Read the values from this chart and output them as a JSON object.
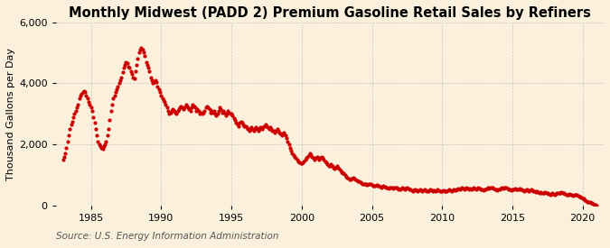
{
  "title": "Monthly Midwest (PADD 2) Premium Gasoline Retail Sales by Refiners",
  "ylabel": "Thousand Gallons per Day",
  "source": "Source: U.S. Energy Information Administration",
  "bg_color": "#faf0dc",
  "plot_bg_color": "#faf0dc",
  "dot_color": "#cc0000",
  "dot_size": 4,
  "xlim": [
    1982.5,
    2021.5
  ],
  "ylim": [
    0,
    6000
  ],
  "yticks": [
    0,
    2000,
    4000,
    6000
  ],
  "xticks": [
    1985,
    1990,
    1995,
    2000,
    2005,
    2010,
    2015,
    2020
  ],
  "grid_color": "#bbbbbb",
  "title_fontsize": 10.5,
  "axis_fontsize": 8,
  "source_fontsize": 7.5,
  "series": [
    [
      1983.0,
      1500
    ],
    [
      1983.08,
      1580
    ],
    [
      1983.17,
      1700
    ],
    [
      1983.25,
      1900
    ],
    [
      1983.33,
      2100
    ],
    [
      1983.42,
      2300
    ],
    [
      1983.5,
      2500
    ],
    [
      1983.58,
      2650
    ],
    [
      1983.67,
      2750
    ],
    [
      1983.75,
      2900
    ],
    [
      1983.83,
      3000
    ],
    [
      1983.92,
      3100
    ],
    [
      1984.0,
      3200
    ],
    [
      1984.08,
      3300
    ],
    [
      1984.17,
      3500
    ],
    [
      1984.25,
      3600
    ],
    [
      1984.33,
      3650
    ],
    [
      1984.42,
      3700
    ],
    [
      1984.5,
      3750
    ],
    [
      1984.58,
      3700
    ],
    [
      1984.67,
      3600
    ],
    [
      1984.75,
      3500
    ],
    [
      1984.83,
      3400
    ],
    [
      1984.92,
      3300
    ],
    [
      1985.0,
      3200
    ],
    [
      1985.08,
      3100
    ],
    [
      1985.17,
      2900
    ],
    [
      1985.25,
      2700
    ],
    [
      1985.33,
      2500
    ],
    [
      1985.42,
      2300
    ],
    [
      1985.5,
      2100
    ],
    [
      1985.58,
      2000
    ],
    [
      1985.67,
      1950
    ],
    [
      1985.75,
      1900
    ],
    [
      1985.83,
      1850
    ],
    [
      1985.92,
      1950
    ],
    [
      1986.0,
      2000
    ],
    [
      1986.08,
      2100
    ],
    [
      1986.17,
      2300
    ],
    [
      1986.25,
      2500
    ],
    [
      1986.33,
      2800
    ],
    [
      1986.42,
      3100
    ],
    [
      1986.5,
      3300
    ],
    [
      1986.58,
      3500
    ],
    [
      1986.67,
      3600
    ],
    [
      1986.75,
      3700
    ],
    [
      1986.83,
      3800
    ],
    [
      1986.92,
      3900
    ],
    [
      1987.0,
      4000
    ],
    [
      1987.08,
      4100
    ],
    [
      1987.17,
      4200
    ],
    [
      1987.25,
      4350
    ],
    [
      1987.33,
      4500
    ],
    [
      1987.42,
      4600
    ],
    [
      1987.5,
      4700
    ],
    [
      1987.58,
      4650
    ],
    [
      1987.67,
      4550
    ],
    [
      1987.75,
      4500
    ],
    [
      1987.83,
      4400
    ],
    [
      1987.92,
      4300
    ],
    [
      1988.0,
      4200
    ],
    [
      1988.08,
      4150
    ],
    [
      1988.17,
      4400
    ],
    [
      1988.25,
      4600
    ],
    [
      1988.33,
      4800
    ],
    [
      1988.42,
      5000
    ],
    [
      1988.5,
      5100
    ],
    [
      1988.58,
      5150
    ],
    [
      1988.67,
      5100
    ],
    [
      1988.75,
      5000
    ],
    [
      1988.83,
      4900
    ],
    [
      1988.92,
      4700
    ],
    [
      1989.0,
      4600
    ],
    [
      1989.08,
      4500
    ],
    [
      1989.17,
      4400
    ],
    [
      1989.25,
      4200
    ],
    [
      1989.33,
      4100
    ],
    [
      1989.42,
      4000
    ],
    [
      1989.5,
      4050
    ],
    [
      1989.58,
      4100
    ],
    [
      1989.67,
      4050
    ],
    [
      1989.75,
      3900
    ],
    [
      1989.83,
      3800
    ],
    [
      1989.92,
      3700
    ],
    [
      1990.0,
      3600
    ],
    [
      1990.08,
      3500
    ],
    [
      1990.17,
      3450
    ],
    [
      1990.25,
      3400
    ],
    [
      1990.33,
      3300
    ],
    [
      1990.42,
      3200
    ],
    [
      1990.5,
      3100
    ],
    [
      1990.58,
      3000
    ],
    [
      1990.67,
      3050
    ],
    [
      1990.75,
      3100
    ],
    [
      1990.83,
      3150
    ],
    [
      1990.92,
      3100
    ],
    [
      1991.0,
      3050
    ],
    [
      1991.08,
      3000
    ],
    [
      1991.17,
      3100
    ],
    [
      1991.25,
      3150
    ],
    [
      1991.33,
      3200
    ],
    [
      1991.42,
      3250
    ],
    [
      1991.5,
      3200
    ],
    [
      1991.58,
      3150
    ],
    [
      1991.67,
      3200
    ],
    [
      1991.75,
      3300
    ],
    [
      1991.83,
      3250
    ],
    [
      1991.92,
      3200
    ],
    [
      1992.0,
      3150
    ],
    [
      1992.08,
      3100
    ],
    [
      1992.17,
      3200
    ],
    [
      1992.25,
      3300
    ],
    [
      1992.33,
      3250
    ],
    [
      1992.42,
      3200
    ],
    [
      1992.5,
      3100
    ],
    [
      1992.58,
      3150
    ],
    [
      1992.67,
      3100
    ],
    [
      1992.75,
      3000
    ],
    [
      1992.83,
      3050
    ],
    [
      1992.92,
      3000
    ],
    [
      1993.0,
      3050
    ],
    [
      1993.08,
      3100
    ],
    [
      1993.17,
      3200
    ],
    [
      1993.25,
      3250
    ],
    [
      1993.33,
      3200
    ],
    [
      1993.42,
      3150
    ],
    [
      1993.5,
      3050
    ],
    [
      1993.58,
      3100
    ],
    [
      1993.67,
      3050
    ],
    [
      1993.75,
      3100
    ],
    [
      1993.83,
      3000
    ],
    [
      1993.92,
      2950
    ],
    [
      1994.0,
      3000
    ],
    [
      1994.08,
      3100
    ],
    [
      1994.17,
      3200
    ],
    [
      1994.25,
      3150
    ],
    [
      1994.33,
      3050
    ],
    [
      1994.42,
      3100
    ],
    [
      1994.5,
      3050
    ],
    [
      1994.58,
      2950
    ],
    [
      1994.67,
      3000
    ],
    [
      1994.75,
      3100
    ],
    [
      1994.83,
      3050
    ],
    [
      1994.92,
      3000
    ],
    [
      1995.0,
      3000
    ],
    [
      1995.08,
      2950
    ],
    [
      1995.17,
      2850
    ],
    [
      1995.25,
      2800
    ],
    [
      1995.33,
      2700
    ],
    [
      1995.42,
      2650
    ],
    [
      1995.5,
      2600
    ],
    [
      1995.58,
      2700
    ],
    [
      1995.67,
      2750
    ],
    [
      1995.75,
      2700
    ],
    [
      1995.83,
      2650
    ],
    [
      1995.92,
      2600
    ],
    [
      1996.0,
      2600
    ],
    [
      1996.08,
      2550
    ],
    [
      1996.17,
      2500
    ],
    [
      1996.25,
      2450
    ],
    [
      1996.33,
      2500
    ],
    [
      1996.42,
      2550
    ],
    [
      1996.5,
      2500
    ],
    [
      1996.58,
      2450
    ],
    [
      1996.67,
      2500
    ],
    [
      1996.75,
      2550
    ],
    [
      1996.83,
      2500
    ],
    [
      1996.92,
      2450
    ],
    [
      1997.0,
      2500
    ],
    [
      1997.08,
      2550
    ],
    [
      1997.17,
      2500
    ],
    [
      1997.25,
      2550
    ],
    [
      1997.33,
      2600
    ],
    [
      1997.42,
      2650
    ],
    [
      1997.5,
      2600
    ],
    [
      1997.58,
      2550
    ],
    [
      1997.67,
      2500
    ],
    [
      1997.75,
      2550
    ],
    [
      1997.83,
      2500
    ],
    [
      1997.92,
      2450
    ],
    [
      1998.0,
      2450
    ],
    [
      1998.08,
      2400
    ],
    [
      1998.17,
      2450
    ],
    [
      1998.25,
      2500
    ],
    [
      1998.33,
      2450
    ],
    [
      1998.42,
      2400
    ],
    [
      1998.5,
      2350
    ],
    [
      1998.58,
      2300
    ],
    [
      1998.67,
      2350
    ],
    [
      1998.75,
      2400
    ],
    [
      1998.83,
      2300
    ],
    [
      1998.92,
      2200
    ],
    [
      1999.0,
      2100
    ],
    [
      1999.08,
      2000
    ],
    [
      1999.17,
      1900
    ],
    [
      1999.25,
      1800
    ],
    [
      1999.33,
      1700
    ],
    [
      1999.42,
      1650
    ],
    [
      1999.5,
      1600
    ],
    [
      1999.58,
      1550
    ],
    [
      1999.67,
      1500
    ],
    [
      1999.75,
      1450
    ],
    [
      1999.83,
      1400
    ],
    [
      1999.92,
      1380
    ],
    [
      2000.0,
      1380
    ],
    [
      2000.08,
      1400
    ],
    [
      2000.17,
      1450
    ],
    [
      2000.25,
      1500
    ],
    [
      2000.33,
      1550
    ],
    [
      2000.42,
      1600
    ],
    [
      2000.5,
      1650
    ],
    [
      2000.58,
      1700
    ],
    [
      2000.67,
      1650
    ],
    [
      2000.75,
      1600
    ],
    [
      2000.83,
      1550
    ],
    [
      2000.92,
      1500
    ],
    [
      2001.0,
      1550
    ],
    [
      2001.08,
      1600
    ],
    [
      2001.17,
      1550
    ],
    [
      2001.25,
      1500
    ],
    [
      2001.33,
      1550
    ],
    [
      2001.42,
      1600
    ],
    [
      2001.5,
      1550
    ],
    [
      2001.58,
      1500
    ],
    [
      2001.67,
      1450
    ],
    [
      2001.75,
      1400
    ],
    [
      2001.83,
      1350
    ],
    [
      2001.92,
      1300
    ],
    [
      2002.0,
      1300
    ],
    [
      2002.08,
      1350
    ],
    [
      2002.17,
      1300
    ],
    [
      2002.25,
      1250
    ],
    [
      2002.33,
      1200
    ],
    [
      2002.42,
      1250
    ],
    [
      2002.5,
      1300
    ],
    [
      2002.58,
      1250
    ],
    [
      2002.67,
      1200
    ],
    [
      2002.75,
      1150
    ],
    [
      2002.83,
      1100
    ],
    [
      2002.92,
      1050
    ],
    [
      2003.0,
      1050
    ],
    [
      2003.08,
      1000
    ],
    [
      2003.17,
      950
    ],
    [
      2003.25,
      900
    ],
    [
      2003.33,
      880
    ],
    [
      2003.42,
      860
    ],
    [
      2003.5,
      850
    ],
    [
      2003.58,
      870
    ],
    [
      2003.67,
      900
    ],
    [
      2003.75,
      870
    ],
    [
      2003.83,
      840
    ],
    [
      2003.92,
      820
    ],
    [
      2004.0,
      800
    ],
    [
      2004.08,
      780
    ],
    [
      2004.17,
      760
    ],
    [
      2004.25,
      740
    ],
    [
      2004.33,
      720
    ],
    [
      2004.42,
      700
    ],
    [
      2004.5,
      720
    ],
    [
      2004.58,
      700
    ],
    [
      2004.67,
      680
    ],
    [
      2004.75,
      700
    ],
    [
      2004.83,
      720
    ],
    [
      2004.92,
      700
    ],
    [
      2005.0,
      680
    ],
    [
      2005.08,
      660
    ],
    [
      2005.17,
      640
    ],
    [
      2005.25,
      660
    ],
    [
      2005.33,
      680
    ],
    [
      2005.42,
      660
    ],
    [
      2005.5,
      640
    ],
    [
      2005.58,
      620
    ],
    [
      2005.67,
      600
    ],
    [
      2005.75,
      620
    ],
    [
      2005.83,
      640
    ],
    [
      2005.92,
      620
    ],
    [
      2006.0,
      600
    ],
    [
      2006.08,
      580
    ],
    [
      2006.17,
      560
    ],
    [
      2006.25,
      580
    ],
    [
      2006.33,
      600
    ],
    [
      2006.42,
      580
    ],
    [
      2006.5,
      560
    ],
    [
      2006.58,
      580
    ],
    [
      2006.67,
      600
    ],
    [
      2006.75,
      580
    ],
    [
      2006.83,
      560
    ],
    [
      2006.92,
      540
    ],
    [
      2007.0,
      540
    ],
    [
      2007.08,
      560
    ],
    [
      2007.17,
      580
    ],
    [
      2007.25,
      560
    ],
    [
      2007.33,
      540
    ],
    [
      2007.42,
      560
    ],
    [
      2007.5,
      580
    ],
    [
      2007.58,
      560
    ],
    [
      2007.67,
      540
    ],
    [
      2007.75,
      520
    ],
    [
      2007.83,
      500
    ],
    [
      2007.92,
      480
    ],
    [
      2008.0,
      500
    ],
    [
      2008.08,
      520
    ],
    [
      2008.17,
      500
    ],
    [
      2008.25,
      480
    ],
    [
      2008.33,
      500
    ],
    [
      2008.42,
      520
    ],
    [
      2008.5,
      500
    ],
    [
      2008.58,
      480
    ],
    [
      2008.67,
      500
    ],
    [
      2008.75,
      520
    ],
    [
      2008.83,
      500
    ],
    [
      2008.92,
      480
    ],
    [
      2009.0,
      480
    ],
    [
      2009.08,
      500
    ],
    [
      2009.17,
      520
    ],
    [
      2009.25,
      500
    ],
    [
      2009.33,
      480
    ],
    [
      2009.42,
      500
    ],
    [
      2009.5,
      480
    ],
    [
      2009.58,
      500
    ],
    [
      2009.67,
      520
    ],
    [
      2009.75,
      500
    ],
    [
      2009.83,
      480
    ],
    [
      2009.92,
      460
    ],
    [
      2010.0,
      480
    ],
    [
      2010.08,
      500
    ],
    [
      2010.17,
      480
    ],
    [
      2010.25,
      460
    ],
    [
      2010.33,
      480
    ],
    [
      2010.42,
      500
    ],
    [
      2010.5,
      520
    ],
    [
      2010.58,
      500
    ],
    [
      2010.67,
      480
    ],
    [
      2010.75,
      500
    ],
    [
      2010.83,
      520
    ],
    [
      2010.92,
      500
    ],
    [
      2011.0,
      520
    ],
    [
      2011.08,
      540
    ],
    [
      2011.17,
      560
    ],
    [
      2011.25,
      540
    ],
    [
      2011.33,
      560
    ],
    [
      2011.42,
      580
    ],
    [
      2011.5,
      560
    ],
    [
      2011.58,
      540
    ],
    [
      2011.67,
      560
    ],
    [
      2011.75,
      580
    ],
    [
      2011.83,
      560
    ],
    [
      2011.92,
      540
    ],
    [
      2012.0,
      560
    ],
    [
      2012.08,
      540
    ],
    [
      2012.17,
      560
    ],
    [
      2012.25,
      580
    ],
    [
      2012.33,
      560
    ],
    [
      2012.42,
      540
    ],
    [
      2012.5,
      560
    ],
    [
      2012.58,
      580
    ],
    [
      2012.67,
      560
    ],
    [
      2012.75,
      540
    ],
    [
      2012.83,
      520
    ],
    [
      2012.92,
      500
    ],
    [
      2013.0,
      520
    ],
    [
      2013.08,
      540
    ],
    [
      2013.17,
      560
    ],
    [
      2013.25,
      580
    ],
    [
      2013.33,
      560
    ],
    [
      2013.42,
      580
    ],
    [
      2013.5,
      600
    ],
    [
      2013.58,
      580
    ],
    [
      2013.67,
      560
    ],
    [
      2013.75,
      540
    ],
    [
      2013.83,
      520
    ],
    [
      2013.92,
      500
    ],
    [
      2014.0,
      520
    ],
    [
      2014.08,
      540
    ],
    [
      2014.17,
      560
    ],
    [
      2014.25,
      580
    ],
    [
      2014.33,
      560
    ],
    [
      2014.42,
      580
    ],
    [
      2014.5,
      600
    ],
    [
      2014.58,
      580
    ],
    [
      2014.67,
      560
    ],
    [
      2014.75,
      540
    ],
    [
      2014.83,
      520
    ],
    [
      2014.92,
      500
    ],
    [
      2015.0,
      520
    ],
    [
      2015.08,
      540
    ],
    [
      2015.17,
      560
    ],
    [
      2015.25,
      540
    ],
    [
      2015.33,
      520
    ],
    [
      2015.42,
      540
    ],
    [
      2015.5,
      560
    ],
    [
      2015.58,
      540
    ],
    [
      2015.67,
      520
    ],
    [
      2015.75,
      500
    ],
    [
      2015.83,
      480
    ],
    [
      2015.92,
      500
    ],
    [
      2016.0,
      520
    ],
    [
      2016.08,
      500
    ],
    [
      2016.17,
      480
    ],
    [
      2016.25,
      500
    ],
    [
      2016.33,
      520
    ],
    [
      2016.42,
      500
    ],
    [
      2016.5,
      480
    ],
    [
      2016.58,
      460
    ],
    [
      2016.67,
      440
    ],
    [
      2016.75,
      460
    ],
    [
      2016.83,
      440
    ],
    [
      2016.92,
      420
    ],
    [
      2017.0,
      440
    ],
    [
      2017.08,
      420
    ],
    [
      2017.17,
      400
    ],
    [
      2017.25,
      420
    ],
    [
      2017.33,
      440
    ],
    [
      2017.42,
      420
    ],
    [
      2017.5,
      400
    ],
    [
      2017.58,
      380
    ],
    [
      2017.67,
      360
    ],
    [
      2017.75,
      380
    ],
    [
      2017.83,
      400
    ],
    [
      2017.92,
      380
    ],
    [
      2018.0,
      360
    ],
    [
      2018.08,
      380
    ],
    [
      2018.17,
      400
    ],
    [
      2018.25,
      420
    ],
    [
      2018.33,
      400
    ],
    [
      2018.42,
      420
    ],
    [
      2018.5,
      440
    ],
    [
      2018.58,
      420
    ],
    [
      2018.67,
      400
    ],
    [
      2018.75,
      380
    ],
    [
      2018.83,
      360
    ],
    [
      2018.92,
      340
    ],
    [
      2019.0,
      360
    ],
    [
      2019.08,
      380
    ],
    [
      2019.17,
      360
    ],
    [
      2019.25,
      340
    ],
    [
      2019.33,
      320
    ],
    [
      2019.42,
      340
    ],
    [
      2019.5,
      360
    ],
    [
      2019.58,
      340
    ],
    [
      2019.67,
      320
    ],
    [
      2019.75,
      300
    ],
    [
      2019.83,
      280
    ],
    [
      2019.92,
      260
    ],
    [
      2020.0,
      240
    ],
    [
      2020.08,
      220
    ],
    [
      2020.17,
      180
    ],
    [
      2020.25,
      150
    ],
    [
      2020.33,
      130
    ],
    [
      2020.42,
      120
    ],
    [
      2020.5,
      110
    ],
    [
      2020.58,
      100
    ],
    [
      2020.67,
      80
    ],
    [
      2020.75,
      60
    ],
    [
      2020.83,
      40
    ],
    [
      2020.92,
      20
    ],
    [
      2021.0,
      10
    ]
  ]
}
